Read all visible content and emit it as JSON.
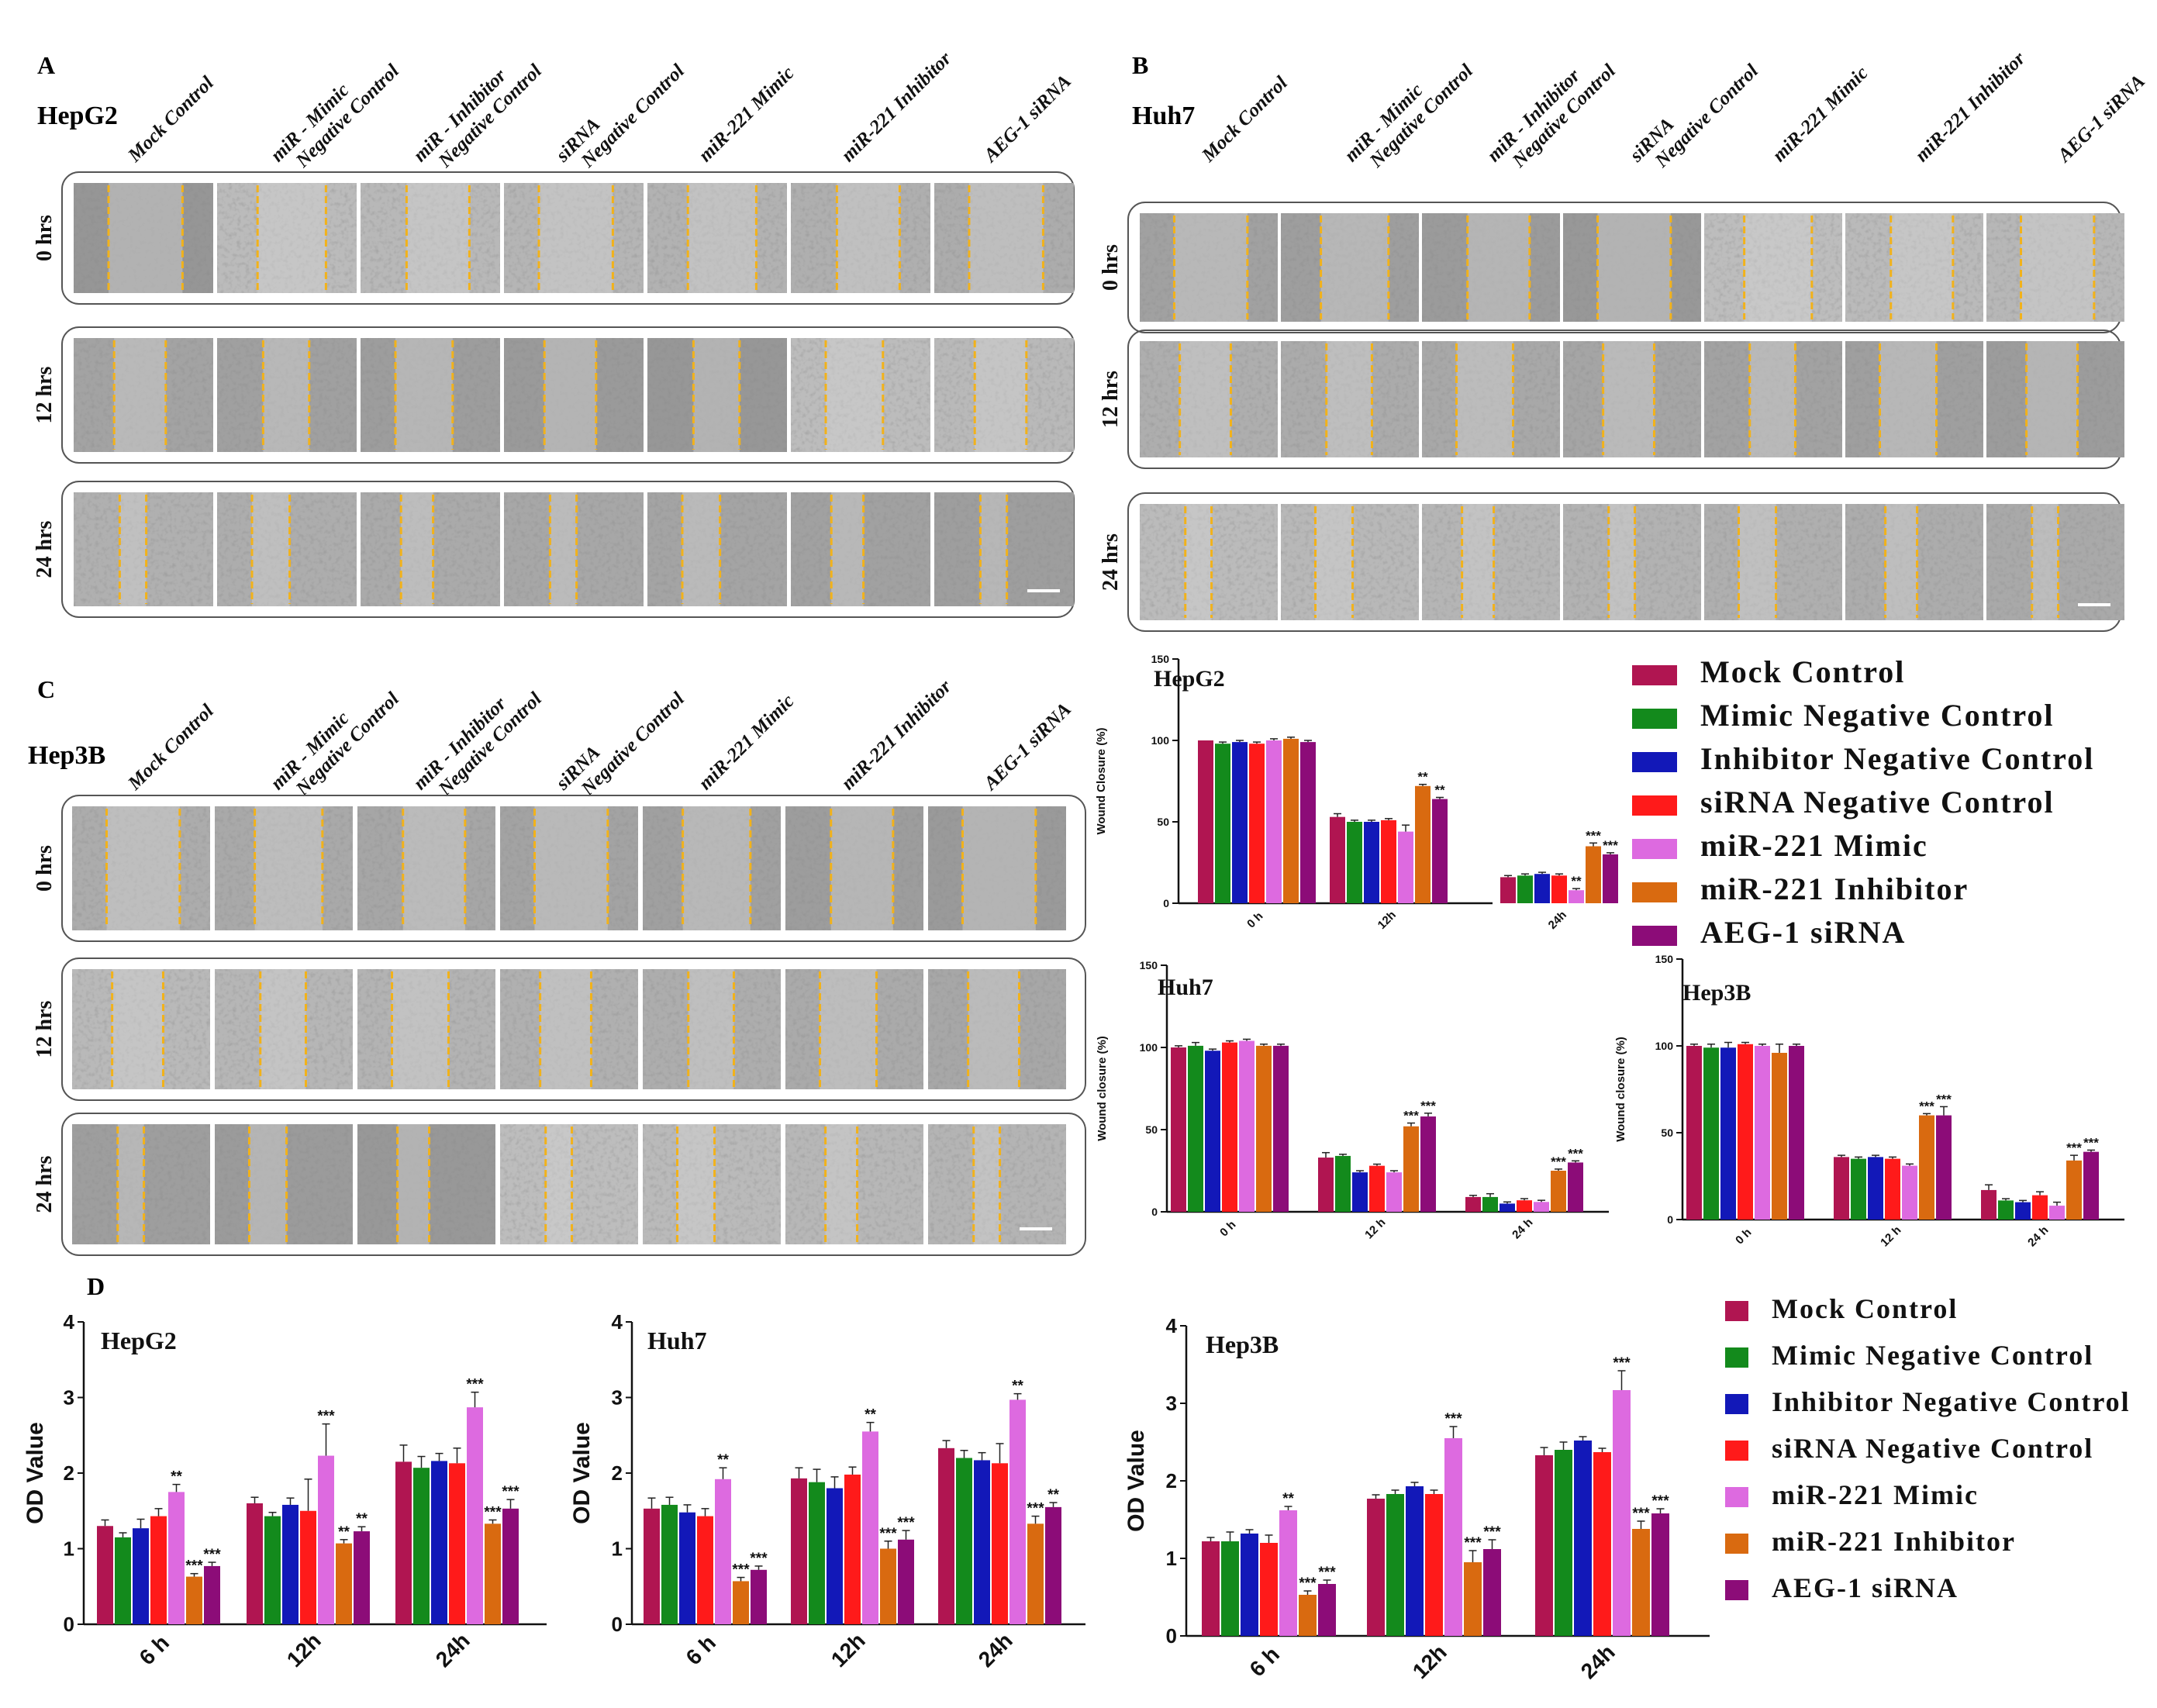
{
  "conditions": [
    "Mock Control",
    "miR - Mimic Negative Control",
    "miR - Inhibitor Negative Control",
    "siRNA Negative Control",
    "miR-221 Mimic",
    "miR-221 Inhibitor",
    "AEG-1 siRNA"
  ],
  "panels": {
    "A": {
      "letter": "A",
      "cell": "HepG2",
      "rows": [
        "0 hrs",
        "12 hrs",
        "24 hrs"
      ]
    },
    "B": {
      "letter": "B",
      "cell": "Huh7",
      "rows": [
        "0 hrs",
        "12 hrs",
        "24 hrs"
      ]
    },
    "C": {
      "letter": "C",
      "cell": "Hep3B",
      "rows": [
        "0 hrs",
        "12 hrs",
        "24 hrs"
      ]
    },
    "D": {
      "letter": "D"
    }
  },
  "legend": {
    "labels": [
      "Mock Control",
      "Mimic Negative Control",
      "Inhibitor Negative Control",
      "siRNA Negative Control",
      "miR-221 Mimic",
      "miR-221 Inhibitor",
      "AEG-1 siRNA"
    ],
    "colors": [
      "#b01551",
      "#138a1c",
      "#1218b8",
      "#ff1a1a",
      "#dd6ae0",
      "#d96a10",
      "#8c0c78"
    ]
  },
  "chart_data": [
    {
      "id": "wound-hepg2",
      "type": "bar",
      "title": "HepG2",
      "ylabel": "Wound Closure (%)",
      "ylim": [
        0,
        150
      ],
      "yticks": [
        0,
        50,
        100,
        150
      ],
      "categories": [
        "0 h",
        "12h",
        "24h"
      ],
      "series": [
        {
          "name": "Mock Control",
          "values": [
            100,
            53,
            16
          ],
          "err": [
            0,
            2,
            1
          ],
          "sig": [
            "",
            "",
            ""
          ]
        },
        {
          "name": "Mimic Negative Control",
          "values": [
            98,
            50,
            17
          ],
          "err": [
            1,
            1,
            1
          ],
          "sig": [
            "",
            "",
            ""
          ]
        },
        {
          "name": "Inhibitor Negative Control",
          "values": [
            99,
            50,
            18
          ],
          "err": [
            1,
            1,
            1
          ],
          "sig": [
            "",
            "",
            ""
          ]
        },
        {
          "name": "siRNA Negative Control",
          "values": [
            98,
            51,
            17
          ],
          "err": [
            1,
            1,
            1
          ],
          "sig": [
            "",
            "",
            ""
          ]
        },
        {
          "name": "miR-221 Mimic",
          "values": [
            100,
            44,
            8
          ],
          "err": [
            1,
            4,
            1
          ],
          "sig": [
            "",
            "",
            "**"
          ]
        },
        {
          "name": "miR-221 Inhibitor",
          "values": [
            101,
            72,
            35
          ],
          "err": [
            1,
            1,
            2
          ],
          "sig": [
            "",
            "**",
            "***"
          ]
        },
        {
          "name": "AEG-1 siRNA",
          "values": [
            99,
            64,
            30
          ],
          "err": [
            1,
            1,
            1
          ],
          "sig": [
            "",
            "**",
            "***"
          ]
        }
      ]
    },
    {
      "id": "wound-huh7",
      "type": "bar",
      "title": "Huh7",
      "ylabel": "Wound closure (%)",
      "ylim": [
        0,
        150
      ],
      "yticks": [
        0,
        50,
        100,
        150
      ],
      "categories": [
        "0 h",
        "12 h",
        "24 h"
      ],
      "series": [
        {
          "name": "Mock Control",
          "values": [
            100,
            33,
            9
          ],
          "err": [
            1,
            3,
            1
          ],
          "sig": [
            "",
            "",
            ""
          ]
        },
        {
          "name": "Mimic Negative Control",
          "values": [
            101,
            34,
            9
          ],
          "err": [
            2,
            1,
            2
          ],
          "sig": [
            "",
            "",
            ""
          ]
        },
        {
          "name": "Inhibitor Negative Control",
          "values": [
            98,
            24,
            5
          ],
          "err": [
            1,
            1,
            1
          ],
          "sig": [
            "",
            "",
            ""
          ]
        },
        {
          "name": "siRNA Negative Control",
          "values": [
            103,
            28,
            7
          ],
          "err": [
            1,
            1,
            1
          ],
          "sig": [
            "",
            "",
            ""
          ]
        },
        {
          "name": "miR-221 Mimic",
          "values": [
            104,
            24,
            6
          ],
          "err": [
            1,
            1,
            1
          ],
          "sig": [
            "",
            "",
            ""
          ]
        },
        {
          "name": "miR-221 Inhibitor",
          "values": [
            101,
            52,
            25
          ],
          "err": [
            1,
            2,
            1
          ],
          "sig": [
            "",
            "***",
            "***"
          ]
        },
        {
          "name": "AEG-1 siRNA",
          "values": [
            101,
            58,
            30
          ],
          "err": [
            1,
            2,
            1
          ],
          "sig": [
            "",
            "***",
            "***"
          ]
        }
      ]
    },
    {
      "id": "wound-hep3b",
      "type": "bar",
      "title": "Hep3B",
      "ylabel": "Wound closure (%)",
      "ylim": [
        0,
        150
      ],
      "yticks": [
        0,
        50,
        100,
        150
      ],
      "categories": [
        "0 h",
        "12 h",
        "24 h"
      ],
      "series": [
        {
          "name": "Mock Control",
          "values": [
            100,
            36,
            17
          ],
          "err": [
            1,
            1,
            3
          ],
          "sig": [
            "",
            "",
            ""
          ]
        },
        {
          "name": "Mimic Negative Control",
          "values": [
            99,
            35,
            11
          ],
          "err": [
            2,
            1,
            1
          ],
          "sig": [
            "",
            "",
            ""
          ]
        },
        {
          "name": "Inhibitor Negative Control",
          "values": [
            99,
            36,
            10
          ],
          "err": [
            3,
            1,
            1
          ],
          "sig": [
            "",
            "",
            ""
          ]
        },
        {
          "name": "siRNA Negative Control",
          "values": [
            101,
            35,
            14
          ],
          "err": [
            1,
            1,
            2
          ],
          "sig": [
            "",
            "",
            ""
          ]
        },
        {
          "name": "miR-221 Mimic",
          "values": [
            100,
            31,
            8
          ],
          "err": [
            1,
            1,
            2
          ],
          "sig": [
            "",
            "",
            ""
          ]
        },
        {
          "name": "miR-221 Inhibitor",
          "values": [
            96,
            60,
            34
          ],
          "err": [
            5,
            1,
            3
          ],
          "sig": [
            "",
            "***",
            "***"
          ]
        },
        {
          "name": "AEG-1 siRNA",
          "values": [
            100,
            60,
            39
          ],
          "err": [
            1,
            5,
            1
          ],
          "sig": [
            "",
            "***",
            "***"
          ]
        }
      ]
    },
    {
      "id": "od-hepg2",
      "type": "bar",
      "title": "HepG2",
      "ylabel": "OD Value",
      "ylim": [
        0,
        4
      ],
      "yticks": [
        0,
        1,
        2,
        3,
        4
      ],
      "categories": [
        "6 h",
        "12h",
        "24h"
      ],
      "series": [
        {
          "name": "Mock Control",
          "values": [
            1.3,
            1.6,
            2.15
          ],
          "err": [
            0.08,
            0.08,
            0.22
          ],
          "sig": [
            "",
            "",
            ""
          ]
        },
        {
          "name": "Mimic Negative Control",
          "values": [
            1.15,
            1.43,
            2.07
          ],
          "err": [
            0.06,
            0.05,
            0.15
          ],
          "sig": [
            "",
            "",
            ""
          ]
        },
        {
          "name": "Inhibitor Negative Control",
          "values": [
            1.27,
            1.58,
            2.16
          ],
          "err": [
            0.12,
            0.09,
            0.1
          ],
          "sig": [
            "",
            "",
            ""
          ]
        },
        {
          "name": "siRNA Negative Control",
          "values": [
            1.43,
            1.5,
            2.13
          ],
          "err": [
            0.1,
            0.42,
            0.2
          ],
          "sig": [
            "",
            "",
            ""
          ]
        },
        {
          "name": "miR-221 Mimic",
          "values": [
            1.75,
            2.23,
            2.87
          ],
          "err": [
            0.1,
            0.42,
            0.2
          ],
          "sig": [
            "**",
            "***",
            "***"
          ]
        },
        {
          "name": "miR-221 Inhibitor",
          "values": [
            0.63,
            1.07,
            1.33
          ],
          "err": [
            0.04,
            0.05,
            0.05
          ],
          "sig": [
            "***",
            "**",
            "***"
          ]
        },
        {
          "name": "AEG-1 siRNA",
          "values": [
            0.77,
            1.23,
            1.53
          ],
          "err": [
            0.05,
            0.06,
            0.12
          ],
          "sig": [
            "***",
            "**",
            "***"
          ]
        }
      ]
    },
    {
      "id": "od-huh7",
      "type": "bar",
      "title": "Huh7",
      "ylabel": "OD Value",
      "ylim": [
        0,
        4
      ],
      "yticks": [
        0,
        1,
        2,
        3,
        4
      ],
      "categories": [
        "6 h",
        "12h",
        "24h"
      ],
      "series": [
        {
          "name": "Mock Control",
          "values": [
            1.53,
            1.93,
            2.33
          ],
          "err": [
            0.14,
            0.14,
            0.1
          ],
          "sig": [
            "",
            "",
            ""
          ]
        },
        {
          "name": "Mimic Negative Control",
          "values": [
            1.58,
            1.88,
            2.2
          ],
          "err": [
            0.1,
            0.17,
            0.1
          ],
          "sig": [
            "",
            "",
            ""
          ]
        },
        {
          "name": "Inhibitor Negative Control",
          "values": [
            1.48,
            1.8,
            2.17
          ],
          "err": [
            0.1,
            0.15,
            0.1
          ],
          "sig": [
            "",
            "",
            ""
          ]
        },
        {
          "name": "siRNA Negative Control",
          "values": [
            1.43,
            1.98,
            2.13
          ],
          "err": [
            0.1,
            0.1,
            0.26
          ],
          "sig": [
            "",
            "",
            ""
          ]
        },
        {
          "name": "miR-221 Mimic",
          "values": [
            1.92,
            2.55,
            2.97
          ],
          "err": [
            0.15,
            0.12,
            0.08
          ],
          "sig": [
            "**",
            "**",
            "**"
          ]
        },
        {
          "name": "miR-221 Inhibitor",
          "values": [
            0.57,
            1.0,
            1.33
          ],
          "err": [
            0.05,
            0.1,
            0.1
          ],
          "sig": [
            "***",
            "***",
            "***"
          ]
        },
        {
          "name": "AEG-1 siRNA",
          "values": [
            0.72,
            1.12,
            1.55
          ],
          "err": [
            0.05,
            0.12,
            0.06
          ],
          "sig": [
            "***",
            "***",
            "**"
          ]
        }
      ]
    },
    {
      "id": "od-hep3b",
      "type": "bar",
      "title": "Hep3B",
      "ylabel": "OD Value",
      "ylim": [
        0,
        4
      ],
      "yticks": [
        0,
        1,
        2,
        3,
        4
      ],
      "categories": [
        "6 h",
        "12h",
        "24h"
      ],
      "series": [
        {
          "name": "Mock Control",
          "values": [
            1.22,
            1.77,
            2.33
          ],
          "err": [
            0.05,
            0.05,
            0.1
          ],
          "sig": [
            "",
            "",
            ""
          ]
        },
        {
          "name": "Mimic Negative Control",
          "values": [
            1.22,
            1.83,
            2.4
          ],
          "err": [
            0.12,
            0.05,
            0.1
          ],
          "sig": [
            "",
            "",
            ""
          ]
        },
        {
          "name": "Inhibitor Negative Control",
          "values": [
            1.32,
            1.93,
            2.52
          ],
          "err": [
            0.05,
            0.05,
            0.05
          ],
          "sig": [
            "",
            "",
            ""
          ]
        },
        {
          "name": "siRNA Negative Control",
          "values": [
            1.2,
            1.83,
            2.37
          ],
          "err": [
            0.1,
            0.05,
            0.05
          ],
          "sig": [
            "",
            "",
            ""
          ]
        },
        {
          "name": "miR-221 Mimic",
          "values": [
            1.62,
            2.55,
            3.17
          ],
          "err": [
            0.05,
            0.15,
            0.25
          ],
          "sig": [
            "**",
            "***",
            "***"
          ]
        },
        {
          "name": "miR-221 Inhibitor",
          "values": [
            0.53,
            0.95,
            1.38
          ],
          "err": [
            0.05,
            0.15,
            0.1
          ],
          "sig": [
            "***",
            "***",
            "***"
          ]
        },
        {
          "name": "AEG-1 siRNA",
          "values": [
            0.67,
            1.12,
            1.58
          ],
          "err": [
            0.05,
            0.12,
            0.06
          ],
          "sig": [
            "***",
            "***",
            "***"
          ]
        }
      ]
    }
  ]
}
